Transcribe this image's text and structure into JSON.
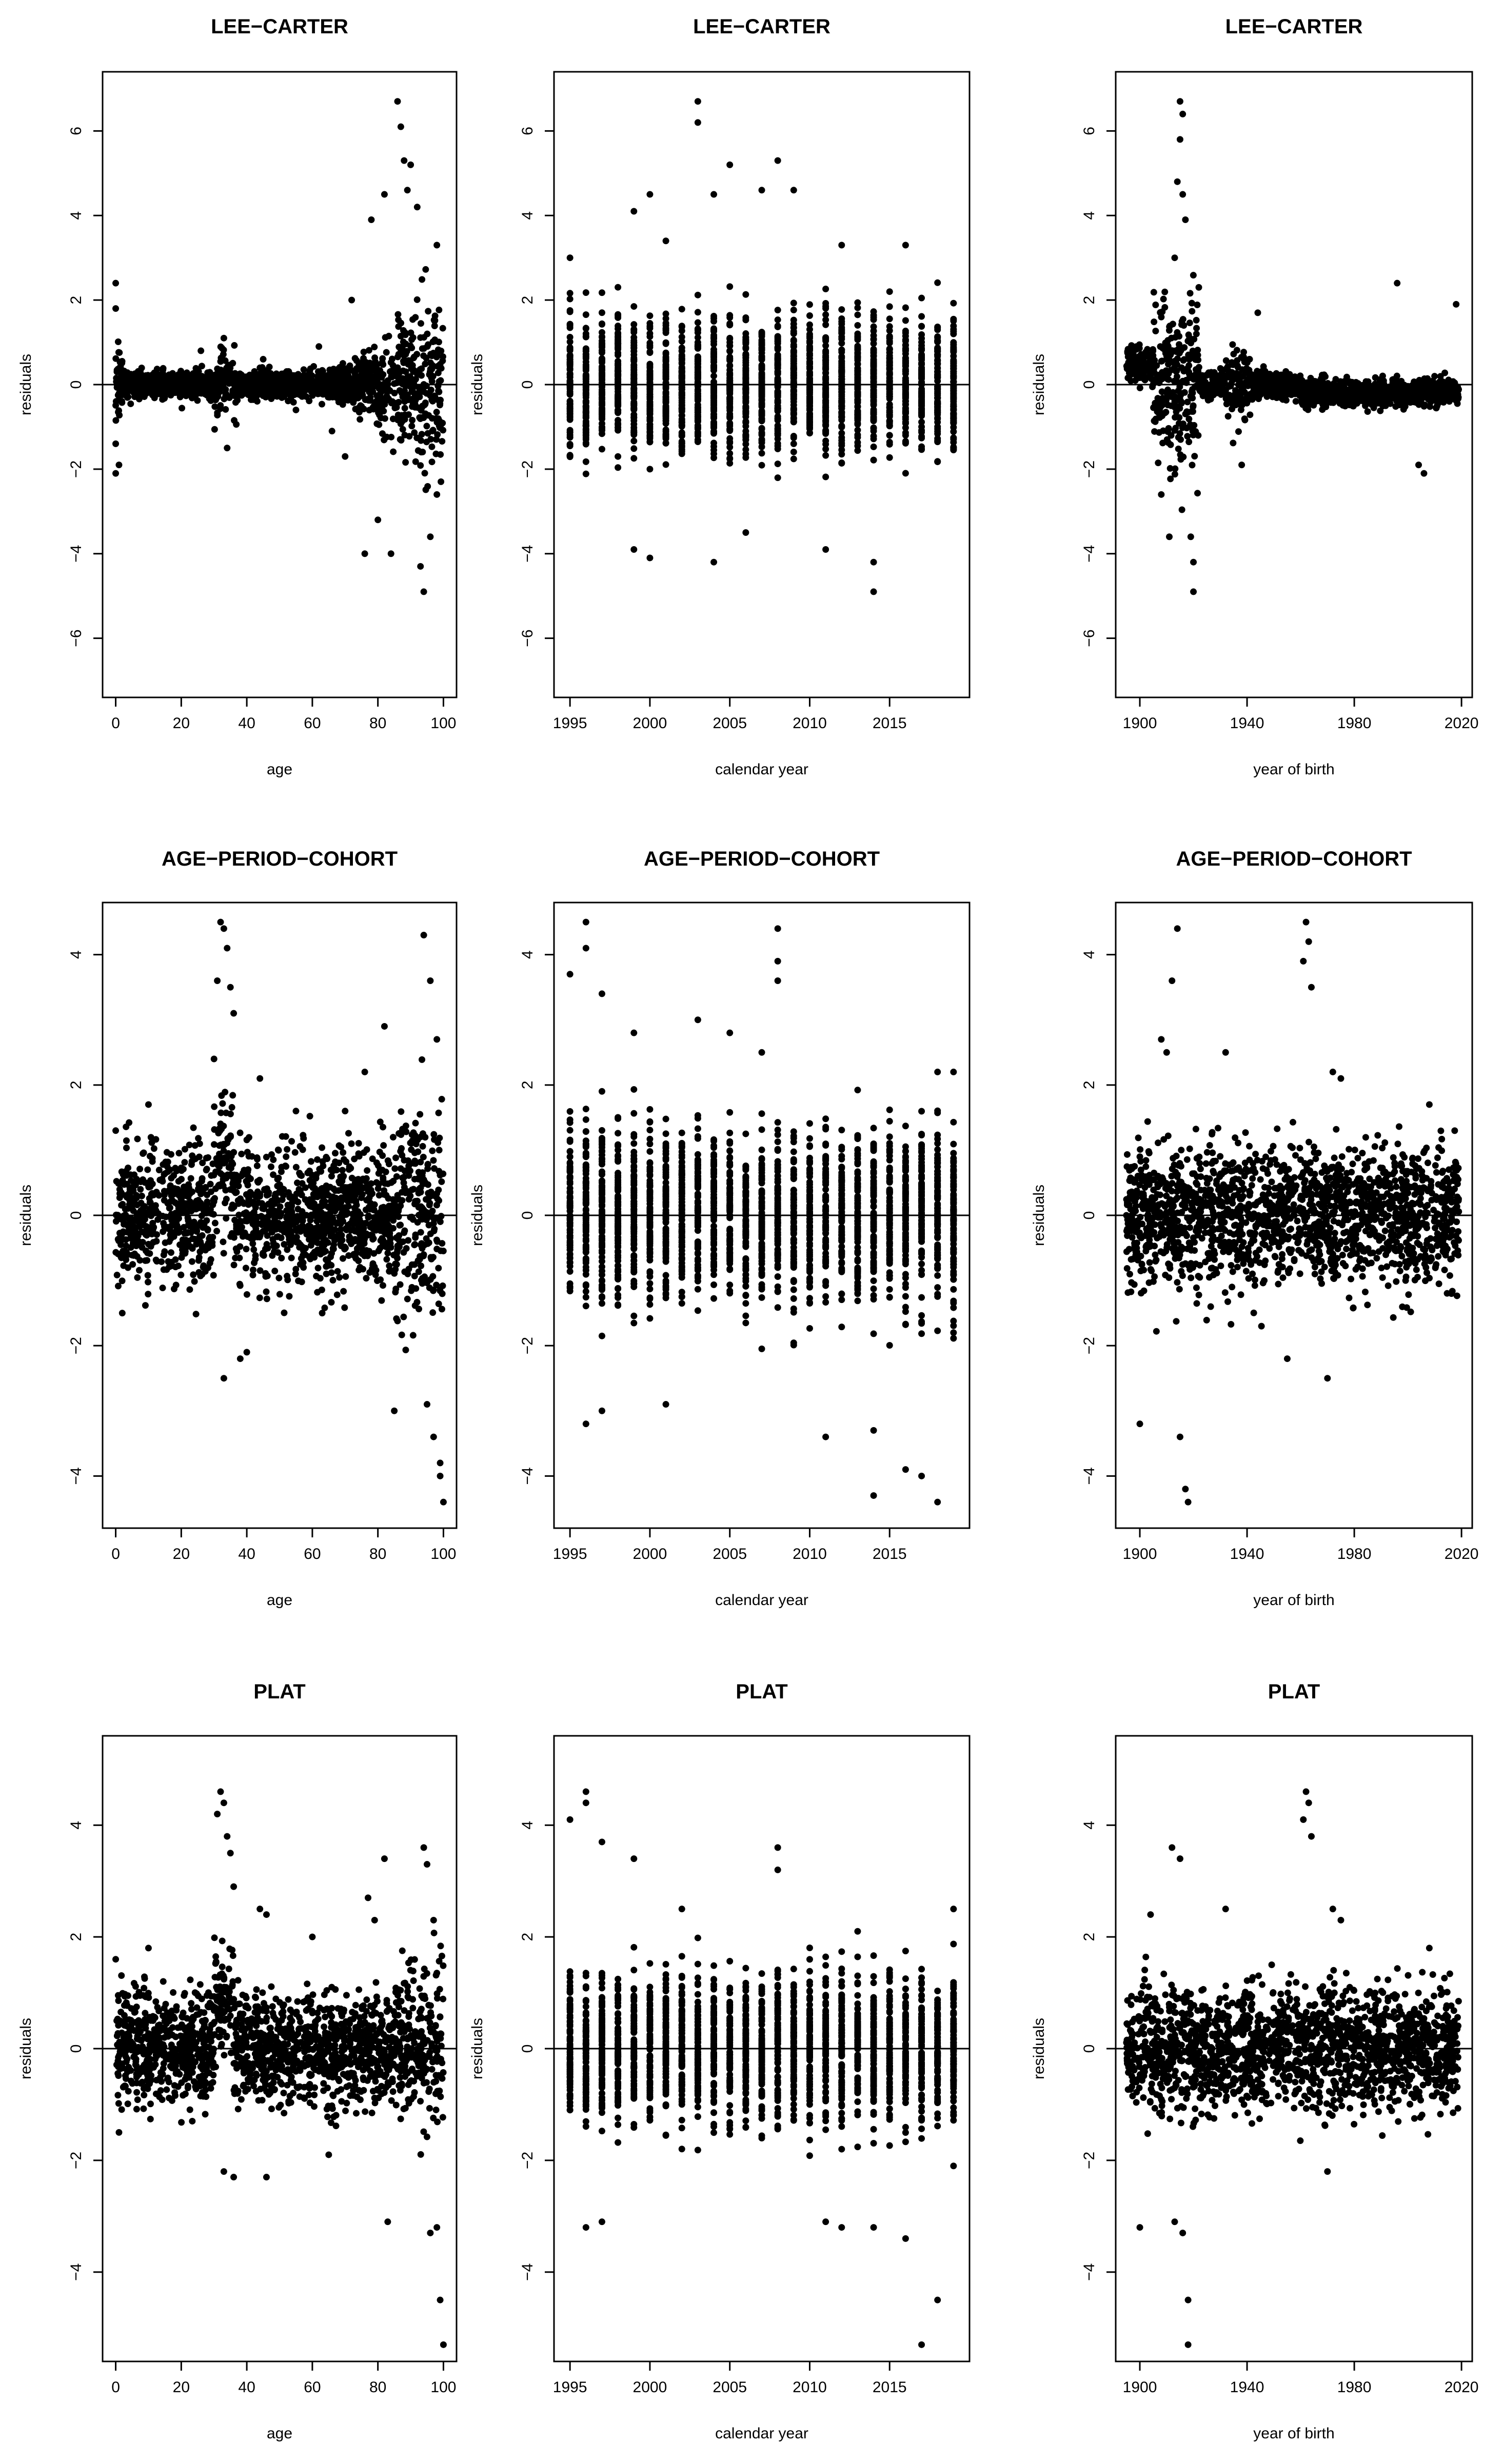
{
  "chart_data": [
    {
      "type": "scatter",
      "title": "LEE−CARTER",
      "xlabel": "age",
      "ylabel": "residuals",
      "xlim": [
        -4,
        104
      ],
      "ylim": [
        -7.4,
        7.4
      ],
      "xticks": [
        0,
        20,
        40,
        60,
        80,
        100
      ],
      "xtick_labels": [
        "0",
        "20",
        "40",
        "60",
        "80",
        "100"
      ],
      "yticks": [
        -6,
        -4,
        -2,
        0,
        2,
        4,
        6
      ],
      "ytick_labels": [
        "−6",
        "−4",
        "−2",
        "0",
        "2",
        "4",
        "6"
      ],
      "reference_line": 0,
      "pattern": "age",
      "x_range": [
        0,
        100
      ],
      "points": [
        [
          0,
          2.4
        ],
        [
          0,
          1.8
        ],
        [
          0,
          -2.1
        ],
        [
          0,
          -1.4
        ],
        [
          1,
          -1.9
        ],
        [
          86,
          6.7
        ],
        [
          87,
          6.1
        ],
        [
          88,
          5.3
        ],
        [
          90,
          5.2
        ],
        [
          89,
          4.6
        ],
        [
          92,
          4.2
        ],
        [
          82,
          4.5
        ],
        [
          78,
          3.9
        ],
        [
          76,
          -4.0
        ],
        [
          84,
          -4.0
        ],
        [
          94,
          -4.9
        ],
        [
          93,
          -4.3
        ],
        [
          96,
          -3.6
        ],
        [
          80,
          -3.2
        ],
        [
          70,
          -1.7
        ],
        [
          72,
          2.0
        ],
        [
          34,
          -1.5
        ],
        [
          33,
          1.1
        ],
        [
          26,
          0.8
        ],
        [
          45,
          0.6
        ],
        [
          55,
          -0.6
        ],
        [
          62,
          0.9
        ],
        [
          66,
          -1.1
        ],
        [
          98,
          3.3
        ],
        [
          98,
          -2.6
        ]
      ]
    },
    {
      "type": "scatter",
      "title": "LEE−CARTER",
      "xlabel": "calendar year",
      "ylabel": "residuals",
      "xlim": [
        1994,
        2020
      ],
      "ylim": [
        -7.4,
        7.4
      ],
      "xticks": [
        1995,
        2000,
        2005,
        2010,
        2015
      ],
      "xtick_labels": [
        "1995",
        "2000",
        "2005",
        "2010",
        "2015"
      ],
      "yticks": [
        -6,
        -4,
        -2,
        0,
        2,
        4,
        6
      ],
      "ytick_labels": [
        "−6",
        "−4",
        "−2",
        "0",
        "2",
        "4",
        "6"
      ],
      "reference_line": 0,
      "pattern": "year",
      "x_range": [
        1995,
        2019
      ],
      "points": [
        [
          2003,
          6.7
        ],
        [
          2003,
          6.2
        ],
        [
          2005,
          5.2
        ],
        [
          2008,
          5.3
        ],
        [
          2007,
          4.6
        ],
        [
          2004,
          4.5
        ],
        [
          1999,
          4.1
        ],
        [
          2000,
          4.5
        ],
        [
          2009,
          4.6
        ],
        [
          1995,
          3.0
        ],
        [
          2001,
          3.4
        ],
        [
          2014,
          -4.9
        ],
        [
          2004,
          -4.2
        ],
        [
          2014,
          -4.2
        ],
        [
          2000,
          -4.1
        ],
        [
          1999,
          -3.9
        ],
        [
          2011,
          -3.9
        ],
        [
          2006,
          -3.5
        ],
        [
          2012,
          3.3
        ],
        [
          2016,
          3.3
        ]
      ]
    },
    {
      "type": "scatter",
      "title": "LEE−CARTER",
      "xlabel": "year of birth",
      "ylabel": "residuals",
      "xlim": [
        1891,
        2024
      ],
      "ylim": [
        -7.4,
        7.4
      ],
      "xticks": [
        1900,
        1940,
        1980,
        2020
      ],
      "xtick_labels": [
        "1900",
        "1940",
        "1980",
        "2020"
      ],
      "yticks": [
        -6,
        -4,
        -2,
        0,
        2,
        4,
        6
      ],
      "ytick_labels": [
        "−6",
        "−4",
        "−2",
        "0",
        "2",
        "4",
        "6"
      ],
      "reference_line": 0,
      "pattern": "cohort_lc",
      "x_range": [
        1895,
        2019
      ],
      "points": [
        [
          1915,
          6.7
        ],
        [
          1916,
          6.4
        ],
        [
          1915,
          5.8
        ],
        [
          1914,
          4.8
        ],
        [
          1916,
          4.5
        ],
        [
          1917,
          3.9
        ],
        [
          1913,
          3.0
        ],
        [
          1920,
          -4.9
        ],
        [
          1920,
          -4.2
        ],
        [
          1919,
          -3.6
        ],
        [
          1911,
          -3.6
        ],
        [
          1908,
          -2.6
        ],
        [
          1922,
          2.3
        ],
        [
          1996,
          2.4
        ],
        [
          2018,
          1.9
        ],
        [
          1938,
          -1.9
        ],
        [
          2004,
          -1.9
        ],
        [
          2006,
          -2.1
        ],
        [
          1944,
          1.7
        ],
        [
          1897,
          0.5
        ]
      ]
    },
    {
      "type": "scatter",
      "title": "AGE−PERIOD−COHORT",
      "xlabel": "age",
      "ylabel": "residuals",
      "xlim": [
        -4,
        104
      ],
      "ylim": [
        -4.8,
        4.8
      ],
      "xticks": [
        0,
        20,
        40,
        60,
        80,
        100
      ],
      "xtick_labels": [
        "0",
        "20",
        "40",
        "60",
        "80",
        "100"
      ],
      "yticks": [
        -4,
        -2,
        0,
        2,
        4
      ],
      "ytick_labels": [
        "−4",
        "−2",
        "0",
        "2",
        "4"
      ],
      "reference_line": 0,
      "pattern": "age_apc",
      "x_range": [
        0,
        100
      ],
      "points": [
        [
          32,
          4.5
        ],
        [
          33,
          4.4
        ],
        [
          34,
          4.1
        ],
        [
          31,
          3.6
        ],
        [
          35,
          3.5
        ],
        [
          36,
          3.1
        ],
        [
          94,
          4.3
        ],
        [
          96,
          3.6
        ],
        [
          98,
          2.7
        ],
        [
          100,
          -4.4
        ],
        [
          99,
          -4.0
        ],
        [
          99,
          -3.8
        ],
        [
          97,
          -3.4
        ],
        [
          95,
          -2.9
        ],
        [
          85,
          -3.0
        ],
        [
          82,
          2.9
        ],
        [
          76,
          2.2
        ],
        [
          30,
          2.4
        ],
        [
          10,
          1.7
        ],
        [
          44,
          2.1
        ],
        [
          33,
          -2.5
        ],
        [
          38,
          -2.2
        ],
        [
          40,
          -2.1
        ],
        [
          0,
          1.3
        ],
        [
          2,
          -1.5
        ],
        [
          55,
          1.6
        ],
        [
          63,
          -1.5
        ],
        [
          70,
          1.6
        ]
      ]
    },
    {
      "type": "scatter",
      "title": "AGE−PERIOD−COHORT",
      "xlabel": "calendar year",
      "ylabel": "residuals",
      "xlim": [
        1994,
        2020
      ],
      "ylim": [
        -4.8,
        4.8
      ],
      "xticks": [
        1995,
        2000,
        2005,
        2010,
        2015
      ],
      "xtick_labels": [
        "1995",
        "2000",
        "2005",
        "2010",
        "2015"
      ],
      "yticks": [
        -4,
        -2,
        0,
        2,
        4
      ],
      "ytick_labels": [
        "−4",
        "−2",
        "0",
        "2",
        "4"
      ],
      "reference_line": 0,
      "pattern": "year_apc",
      "x_range": [
        1995,
        2019
      ],
      "points": [
        [
          1996,
          4.5
        ],
        [
          1996,
          4.1
        ],
        [
          1995,
          3.7
        ],
        [
          1997,
          3.4
        ],
        [
          2008,
          4.4
        ],
        [
          2008,
          3.9
        ],
        [
          2008,
          3.6
        ],
        [
          1999,
          2.8
        ],
        [
          2003,
          3.0
        ],
        [
          2005,
          2.8
        ],
        [
          2007,
          2.5
        ],
        [
          2018,
          -4.4
        ],
        [
          2014,
          -4.3
        ],
        [
          2016,
          -3.9
        ],
        [
          2017,
          -4.0
        ],
        [
          2011,
          -3.4
        ],
        [
          2014,
          -3.3
        ],
        [
          1996,
          -3.2
        ],
        [
          1997,
          -3.0
        ],
        [
          2001,
          -2.9
        ],
        [
          2018,
          2.2
        ],
        [
          2019,
          2.2
        ],
        [
          2019,
          -1.8
        ]
      ]
    },
    {
      "type": "scatter",
      "title": "AGE−PERIOD−COHORT",
      "xlabel": "year of birth",
      "ylabel": "residuals",
      "xlim": [
        1891,
        2024
      ],
      "ylim": [
        -4.8,
        4.8
      ],
      "xticks": [
        1900,
        1940,
        1980,
        2020
      ],
      "xtick_labels": [
        "1900",
        "1940",
        "1980",
        "2020"
      ],
      "yticks": [
        -4,
        -2,
        0,
        2,
        4
      ],
      "ytick_labels": [
        "−4",
        "−2",
        "0",
        "2",
        "4"
      ],
      "reference_line": 0,
      "pattern": "cohort_apc",
      "x_range": [
        1895,
        2019
      ],
      "points": [
        [
          1914,
          4.4
        ],
        [
          1912,
          3.6
        ],
        [
          1962,
          4.5
        ],
        [
          1963,
          4.2
        ],
        [
          1961,
          3.9
        ],
        [
          1964,
          3.5
        ],
        [
          1918,
          -4.4
        ],
        [
          1917,
          -4.2
        ],
        [
          1915,
          -3.4
        ],
        [
          1900,
          -3.2
        ],
        [
          1908,
          2.7
        ],
        [
          1910,
          2.5
        ],
        [
          1932,
          2.5
        ],
        [
          1972,
          2.2
        ],
        [
          1975,
          2.1
        ],
        [
          1970,
          -2.5
        ],
        [
          1955,
          -2.2
        ],
        [
          2008,
          1.7
        ],
        [
          1895,
          0.0
        ],
        [
          1900,
          0.9
        ]
      ]
    },
    {
      "type": "scatter",
      "title": "PLAT",
      "xlabel": "age",
      "ylabel": "residuals",
      "xlim": [
        -4,
        104
      ],
      "ylim": [
        -5.6,
        5.6
      ],
      "xticks": [
        0,
        20,
        40,
        60,
        80,
        100
      ],
      "xtick_labels": [
        "0",
        "20",
        "40",
        "60",
        "80",
        "100"
      ],
      "yticks": [
        -4,
        -2,
        0,
        2,
        4
      ],
      "ytick_labels": [
        "−4",
        "−2",
        "0",
        "2",
        "4"
      ],
      "reference_line": 0,
      "pattern": "age_plat",
      "x_range": [
        0,
        100
      ],
      "points": [
        [
          32,
          4.6
        ],
        [
          33,
          4.4
        ],
        [
          31,
          4.2
        ],
        [
          34,
          3.8
        ],
        [
          35,
          3.5
        ],
        [
          36,
          2.9
        ],
        [
          94,
          3.6
        ],
        [
          95,
          3.3
        ],
        [
          97,
          2.3
        ],
        [
          100,
          -5.3
        ],
        [
          99,
          -4.5
        ],
        [
          98,
          -3.2
        ],
        [
          96,
          -3.3
        ],
        [
          82,
          3.4
        ],
        [
          83,
          -3.1
        ],
        [
          77,
          2.7
        ],
        [
          79,
          2.3
        ],
        [
          44,
          2.5
        ],
        [
          46,
          2.4
        ],
        [
          33,
          -2.2
        ],
        [
          36,
          -2.3
        ],
        [
          46,
          -2.3
        ],
        [
          0,
          1.6
        ],
        [
          1,
          -1.5
        ],
        [
          10,
          1.8
        ],
        [
          60,
          2.0
        ],
        [
          65,
          -1.9
        ]
      ]
    },
    {
      "type": "scatter",
      "title": "PLAT",
      "xlabel": "calendar year",
      "ylabel": "residuals",
      "xlim": [
        1994,
        2020
      ],
      "ylim": [
        -5.6,
        5.6
      ],
      "xticks": [
        1995,
        2000,
        2005,
        2010,
        2015
      ],
      "xtick_labels": [
        "1995",
        "2000",
        "2005",
        "2010",
        "2015"
      ],
      "yticks": [
        -4,
        -2,
        0,
        2,
        4
      ],
      "ytick_labels": [
        "−4",
        "−2",
        "0",
        "2",
        "4"
      ],
      "reference_line": 0,
      "pattern": "year_plat",
      "x_range": [
        1995,
        2019
      ],
      "points": [
        [
          1996,
          4.6
        ],
        [
          1996,
          4.4
        ],
        [
          1995,
          4.1
        ],
        [
          1997,
          3.7
        ],
        [
          1999,
          3.4
        ],
        [
          2008,
          3.6
        ],
        [
          2008,
          3.2
        ],
        [
          2017,
          -5.3
        ],
        [
          2018,
          -4.5
        ],
        [
          1996,
          -3.2
        ],
        [
          1997,
          -3.1
        ],
        [
          2011,
          -3.1
        ],
        [
          2016,
          -3.4
        ],
        [
          2014,
          -3.2
        ],
        [
          2012,
          -3.2
        ],
        [
          2013,
          2.1
        ],
        [
          2019,
          2.5
        ],
        [
          2019,
          -2.1
        ],
        [
          2002,
          2.5
        ]
      ]
    },
    {
      "type": "scatter",
      "title": "PLAT",
      "xlabel": "year of birth",
      "ylabel": "residuals",
      "xlim": [
        1891,
        2024
      ],
      "ylim": [
        -5.6,
        5.6
      ],
      "xticks": [
        1900,
        1940,
        1980,
        2020
      ],
      "xtick_labels": [
        "1900",
        "1940",
        "1980",
        "2020"
      ],
      "yticks": [
        -4,
        -2,
        0,
        2,
        4
      ],
      "ytick_labels": [
        "−4",
        "−2",
        "0",
        "2",
        "4"
      ],
      "reference_line": 0,
      "pattern": "cohort_plat",
      "x_range": [
        1895,
        2019
      ],
      "points": [
        [
          1962,
          4.6
        ],
        [
          1963,
          4.4
        ],
        [
          1961,
          4.1
        ],
        [
          1964,
          3.8
        ],
        [
          1912,
          3.6
        ],
        [
          1915,
          3.4
        ],
        [
          1918,
          -5.3
        ],
        [
          1918,
          -4.5
        ],
        [
          1916,
          -3.3
        ],
        [
          1913,
          -3.1
        ],
        [
          1900,
          -3.2
        ],
        [
          1932,
          2.5
        ],
        [
          1972,
          2.5
        ],
        [
          1975,
          2.3
        ],
        [
          2008,
          1.8
        ],
        [
          1970,
          -2.2
        ],
        [
          1904,
          2.4
        ],
        [
          1897,
          0.2
        ]
      ]
    }
  ]
}
